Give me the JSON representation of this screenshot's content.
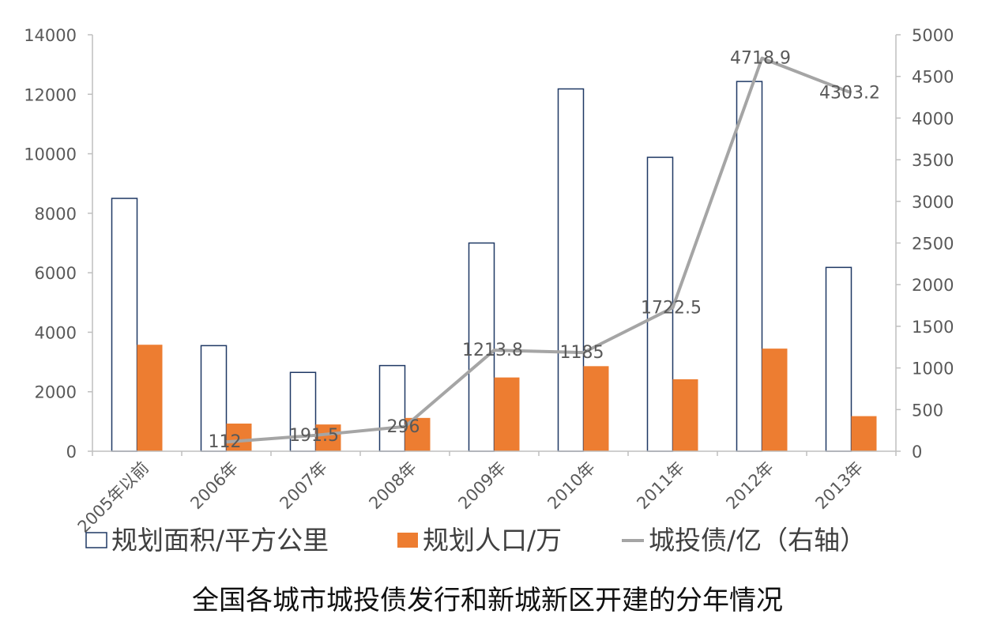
{
  "chart_data": {
    "type": "bar",
    "title": "全国各城市城投债发行和新城新区开建的分年情况",
    "categories": [
      "2005年以前",
      "2006年",
      "2007年",
      "2008年",
      "2009年",
      "2010年",
      "2011年",
      "2012年",
      "2013年"
    ],
    "series": [
      {
        "name": "规划面积/平方公里",
        "type": "bar",
        "axis": "left",
        "style": "outline",
        "color": "#1f3864",
        "values": [
          8500,
          3550,
          2650,
          2880,
          7000,
          12180,
          9880,
          12430,
          6180
        ]
      },
      {
        "name": "规划人口/万",
        "type": "bar",
        "axis": "left",
        "style": "filled",
        "color": "#ed7d31",
        "values": [
          3580,
          930,
          900,
          1120,
          2480,
          2860,
          2420,
          3450,
          1180
        ]
      },
      {
        "name": "城投债/亿（右轴）",
        "type": "line",
        "axis": "right",
        "color": "#a5a5a5",
        "values": [
          null,
          112,
          191.5,
          296,
          1213.8,
          1185,
          1722.5,
          4718.9,
          4303.2
        ],
        "labels": [
          "",
          "112",
          "191.5",
          "296",
          "1213.8",
          "1185",
          "1722.5",
          "4718.9",
          "4303.2"
        ]
      }
    ],
    "y_left": {
      "min": 0,
      "max": 14000,
      "ticks": [
        "0",
        "2000",
        "4000",
        "6000",
        "8000",
        "10000",
        "12000",
        "14000"
      ]
    },
    "y_right": {
      "min": 0,
      "max": 5000,
      "ticks": [
        "0",
        "500",
        "1000",
        "1500",
        "2000",
        "2500",
        "3000",
        "3500",
        "4000",
        "4500",
        "5000"
      ]
    },
    "grid": false,
    "legend_position": "bottom"
  }
}
